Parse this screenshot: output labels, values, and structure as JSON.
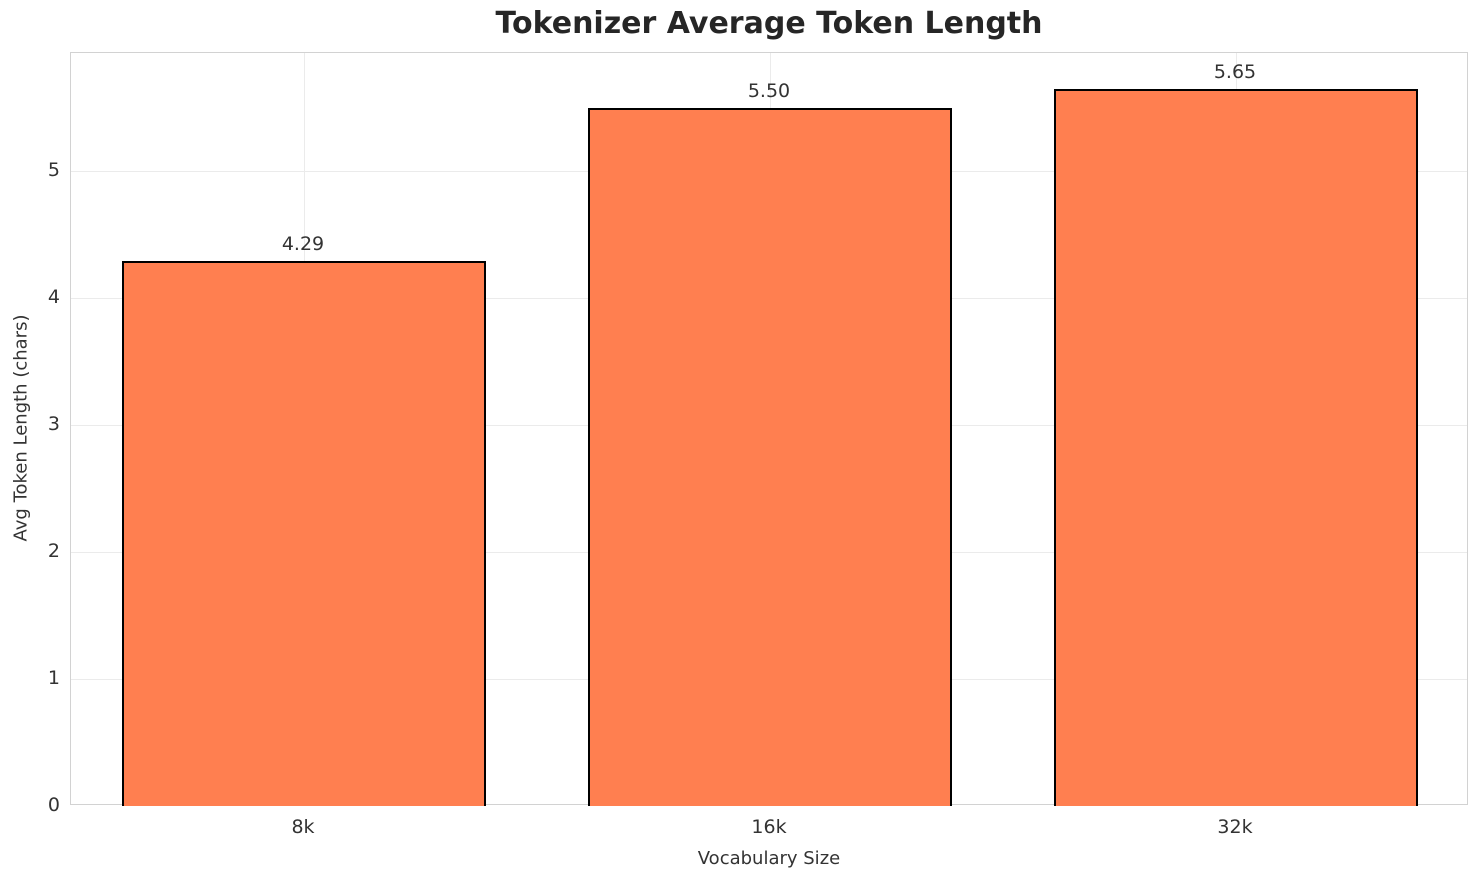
{
  "chart_data": {
    "type": "bar",
    "title": "Tokenizer Average Token Length",
    "categories": [
      "8k",
      "16k",
      "32k"
    ],
    "values": [
      4.29,
      5.5,
      5.65
    ],
    "value_labels": [
      "4.29",
      "5.50",
      "5.65"
    ],
    "xlabel": "Vocabulary Size",
    "ylabel": "Avg Token Length (chars)",
    "ylim": [
      0,
      5.93
    ],
    "yticks": [
      0,
      1,
      2,
      3,
      4,
      5
    ],
    "ytick_labels": [
      "0",
      "1",
      "2",
      "3",
      "4",
      "5"
    ],
    "grid": true,
    "legend": false,
    "bar_color": "#FF7F50",
    "bar_edge_color": "#000000",
    "grid_color": "#ebebeb",
    "spine_color": "#d2d2d2",
    "text_color": "#333333",
    "title_color": "#262626",
    "bar_width_fraction": 0.78
  }
}
